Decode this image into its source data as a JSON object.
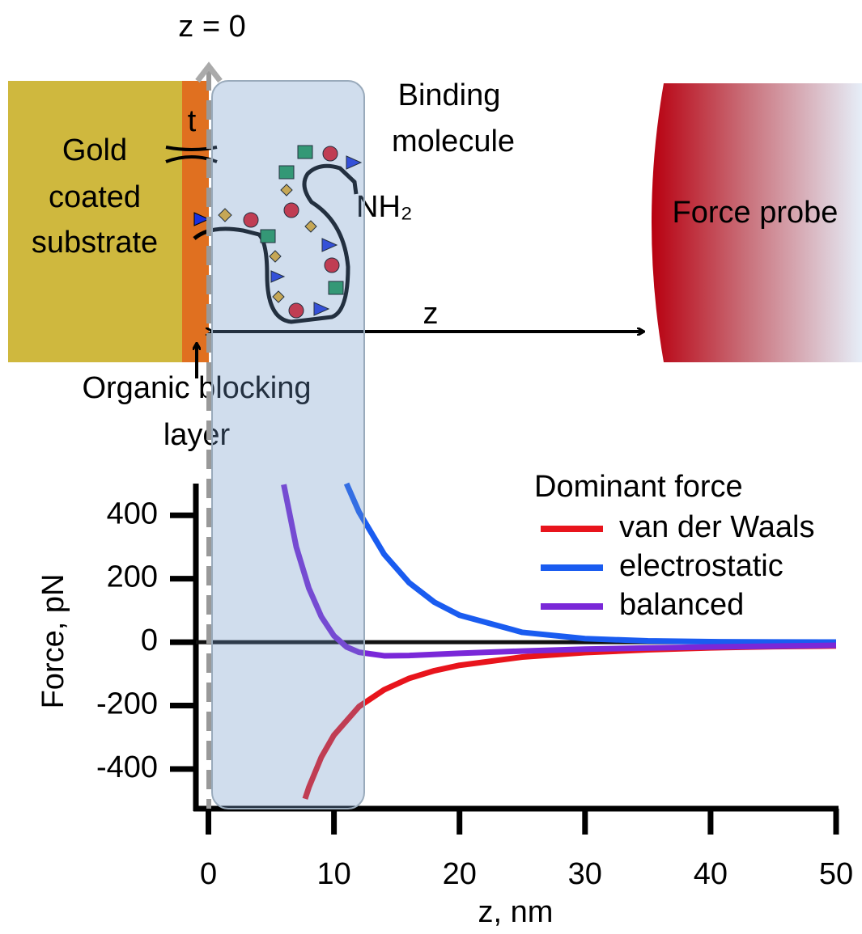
{
  "diagram": {
    "z0_label": "z = 0",
    "t_label": "t",
    "substrate_label": [
      "Gold",
      "coated",
      "substrate"
    ],
    "molecule_label": [
      "Binding",
      "molecule"
    ],
    "end_group_label": "NH₂",
    "probe_label": "Force probe",
    "distance_label": "z",
    "layer_label": [
      "Organic blocking",
      "layer"
    ]
  },
  "chart_data": {
    "type": "line",
    "xlabel": "z, nm",
    "ylabel": "Force, pN",
    "xlim": [
      -1,
      50
    ],
    "ylim": [
      -525,
      500
    ],
    "xticks": [
      0,
      10,
      20,
      30,
      40,
      50
    ],
    "yticks": [
      -400,
      -200,
      0,
      200,
      400
    ],
    "legend_title": "Dominant force",
    "legend": "upper right",
    "series": [
      {
        "name": "van der Waals",
        "color": "#e8141c",
        "x": [
          7.7,
          8,
          9,
          10,
          12,
          14,
          16,
          18,
          20,
          25,
          30,
          35,
          40,
          45,
          50
        ],
        "values": [
          -494,
          -458,
          -362,
          -293,
          -203,
          -150,
          -114,
          -90,
          -73,
          -47,
          -33,
          -24,
          -18,
          -14,
          -12
        ]
      },
      {
        "name": "electrostatic",
        "color": "#1a5cf0",
        "x": [
          11,
          12,
          14,
          16,
          18,
          20,
          25,
          30,
          35,
          40,
          45,
          50
        ],
        "values": [
          500,
          410,
          277,
          187,
          126,
          85,
          31,
          11,
          4,
          1.5,
          0.5,
          0.2
        ]
      },
      {
        "name": "balanced",
        "color": "#7a28d8",
        "x": [
          6,
          7,
          8,
          9,
          10,
          11,
          12,
          14,
          16,
          20,
          25,
          30,
          40,
          50
        ],
        "values": [
          497,
          300,
          170,
          80,
          20,
          -15,
          -32,
          -43,
          -42,
          -35,
          -28,
          -22,
          -15,
          -10
        ]
      }
    ]
  }
}
